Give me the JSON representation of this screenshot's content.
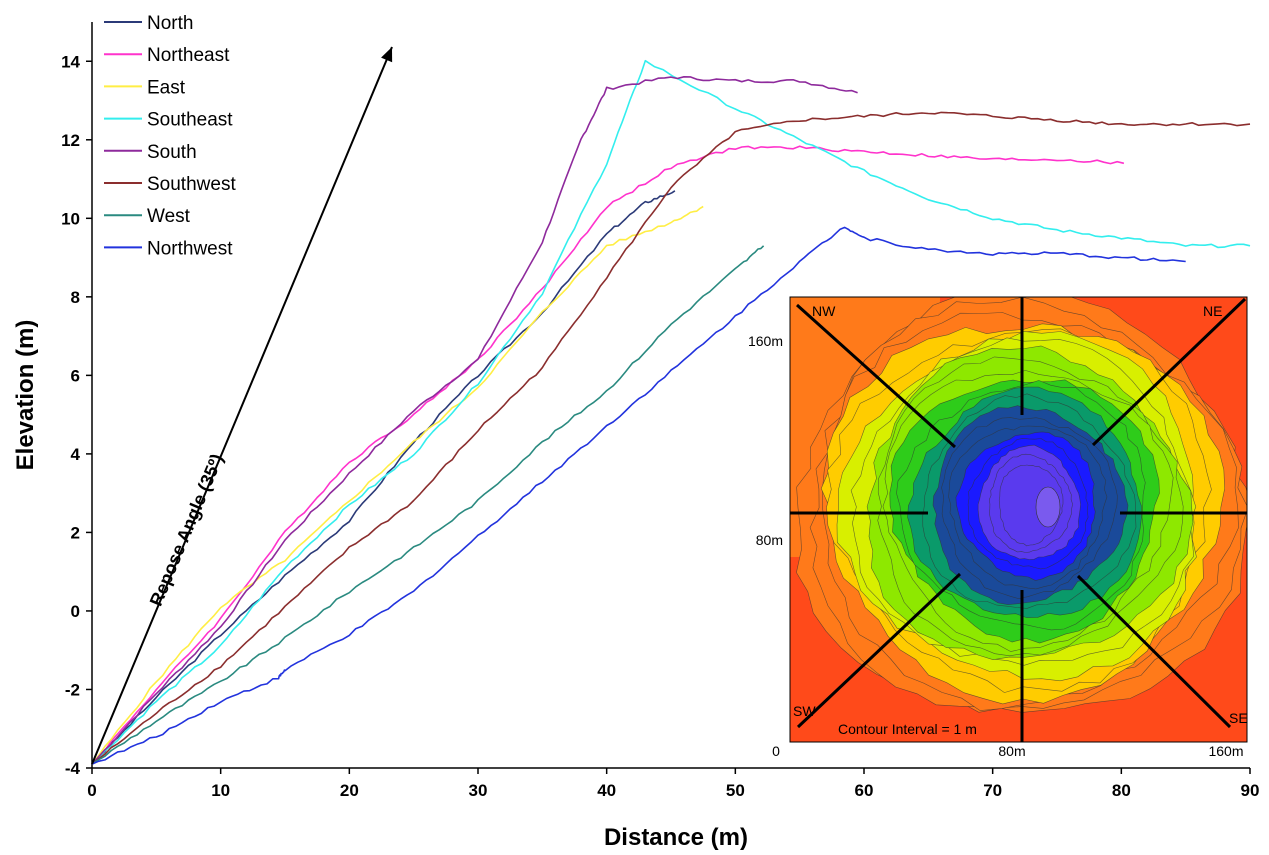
{
  "chart_data": {
    "type": "line",
    "xlabel": "Distance (m)",
    "ylabel": "Elevation (m)",
    "xlim": [
      0,
      90
    ],
    "ylim": [
      -4,
      15
    ],
    "xticks": [
      0,
      10,
      20,
      30,
      40,
      50,
      60,
      70,
      80,
      90
    ],
    "yticks": [
      -4,
      -2,
      0,
      2,
      4,
      6,
      8,
      10,
      12,
      14
    ],
    "grid": false,
    "legend_position": "top-left",
    "series": [
      {
        "name": "North",
        "color": "#2b3a78",
        "x": [
          0,
          5,
          10,
          15,
          20,
          25,
          30,
          35,
          40,
          43,
          45.3
        ],
        "y": [
          -3.9,
          -2.2,
          -0.6,
          0.9,
          2.3,
          4.3,
          6.0,
          7.6,
          9.6,
          10.4,
          10.7
        ]
      },
      {
        "name": "Northeast",
        "color": "#ff33cc",
        "x": [
          0,
          5,
          10,
          15,
          20,
          25,
          30,
          35,
          40,
          45,
          50,
          55,
          60,
          65,
          70,
          75,
          80.2
        ],
        "y": [
          -3.9,
          -2.0,
          -0.2,
          2.0,
          3.8,
          5.0,
          6.4,
          8.2,
          10.3,
          11.3,
          11.8,
          11.8,
          11.7,
          11.6,
          11.5,
          11.5,
          11.4
        ]
      },
      {
        "name": "East",
        "color": "#ffee44",
        "x": [
          0,
          5,
          10,
          15,
          20,
          25,
          30,
          35,
          40,
          45,
          47.5
        ],
        "y": [
          -3.9,
          -1.8,
          0.1,
          1.3,
          2.8,
          4.3,
          5.7,
          7.6,
          9.3,
          9.9,
          10.3
        ]
      },
      {
        "name": "Southeast",
        "color": "#33eeee",
        "x": [
          0,
          5,
          10,
          15,
          20,
          25,
          30,
          35,
          40,
          43,
          50,
          55,
          60,
          65,
          70,
          75,
          80,
          85,
          90
        ],
        "y": [
          -3.9,
          -2.3,
          -0.9,
          1.1,
          2.7,
          4.0,
          5.8,
          8.1,
          11.4,
          14.0,
          12.8,
          12.0,
          11.2,
          10.5,
          10.0,
          9.7,
          9.5,
          9.3,
          9.3
        ]
      },
      {
        "name": "South",
        "color": "#8e2a9c",
        "x": [
          0,
          5,
          10,
          15,
          20,
          25,
          30,
          35,
          38,
          40,
          45,
          50,
          55,
          59.5
        ],
        "y": [
          -3.9,
          -2.1,
          -0.4,
          1.8,
          3.5,
          5.1,
          6.4,
          9.4,
          12.0,
          13.3,
          13.6,
          13.5,
          13.5,
          13.2
        ]
      },
      {
        "name": "Southwest",
        "color": "#8b2e2e",
        "x": [
          0,
          5,
          10,
          15,
          20,
          25,
          30,
          35,
          40,
          45,
          50,
          55,
          60,
          65,
          70,
          75,
          80,
          85,
          90
        ],
        "y": [
          -3.9,
          -2.6,
          -1.4,
          0.1,
          1.6,
          2.8,
          4.6,
          6.2,
          8.5,
          10.8,
          12.2,
          12.5,
          12.6,
          12.7,
          12.6,
          12.5,
          12.4,
          12.4,
          12.4
        ]
      },
      {
        "name": "West",
        "color": "#2a8a80",
        "x": [
          0,
          5,
          10,
          15,
          20,
          25,
          30,
          35,
          40,
          45,
          50,
          52.2
        ],
        "y": [
          -3.9,
          -2.8,
          -1.8,
          -0.7,
          0.5,
          1.6,
          2.8,
          4.3,
          5.6,
          7.3,
          8.7,
          9.3
        ]
      },
      {
        "name": "Northwest",
        "color": "#2233dd",
        "x": [
          0,
          5,
          10,
          14.5,
          15,
          20,
          25,
          30,
          35,
          40,
          45,
          50,
          55,
          58.5,
          60,
          65,
          70,
          75,
          80,
          85
        ],
        "y": [
          -3.9,
          -3.2,
          -2.3,
          -1.7,
          -1.5,
          -0.6,
          0.5,
          1.9,
          3.3,
          4.7,
          6.1,
          7.5,
          8.9,
          9.8,
          9.5,
          9.2,
          9.1,
          9.1,
          9.0,
          8.9
        ]
      }
    ],
    "annotations": [
      {
        "text": "Repose Angle (35º)",
        "kind": "arrow"
      }
    ],
    "inset": {
      "type": "contour map",
      "labels": {
        "nw": "NW",
        "ne": "NE",
        "sw": "SW",
        "se": "SE"
      },
      "y_ticks": {
        "top": "160m",
        "mid": "80m"
      },
      "x_ticks": {
        "origin": "0",
        "mid": "80m",
        "end": "160m"
      },
      "note": "Contour Interval = 1 m",
      "colors": [
        "#ff4a1a",
        "#ff7a1a",
        "#ffcc00",
        "#d8ef00",
        "#8ee800",
        "#2ecc1a",
        "#0a9a6a",
        "#1a4a9a",
        "#1a1aff",
        "#5a3aee"
      ]
    }
  }
}
